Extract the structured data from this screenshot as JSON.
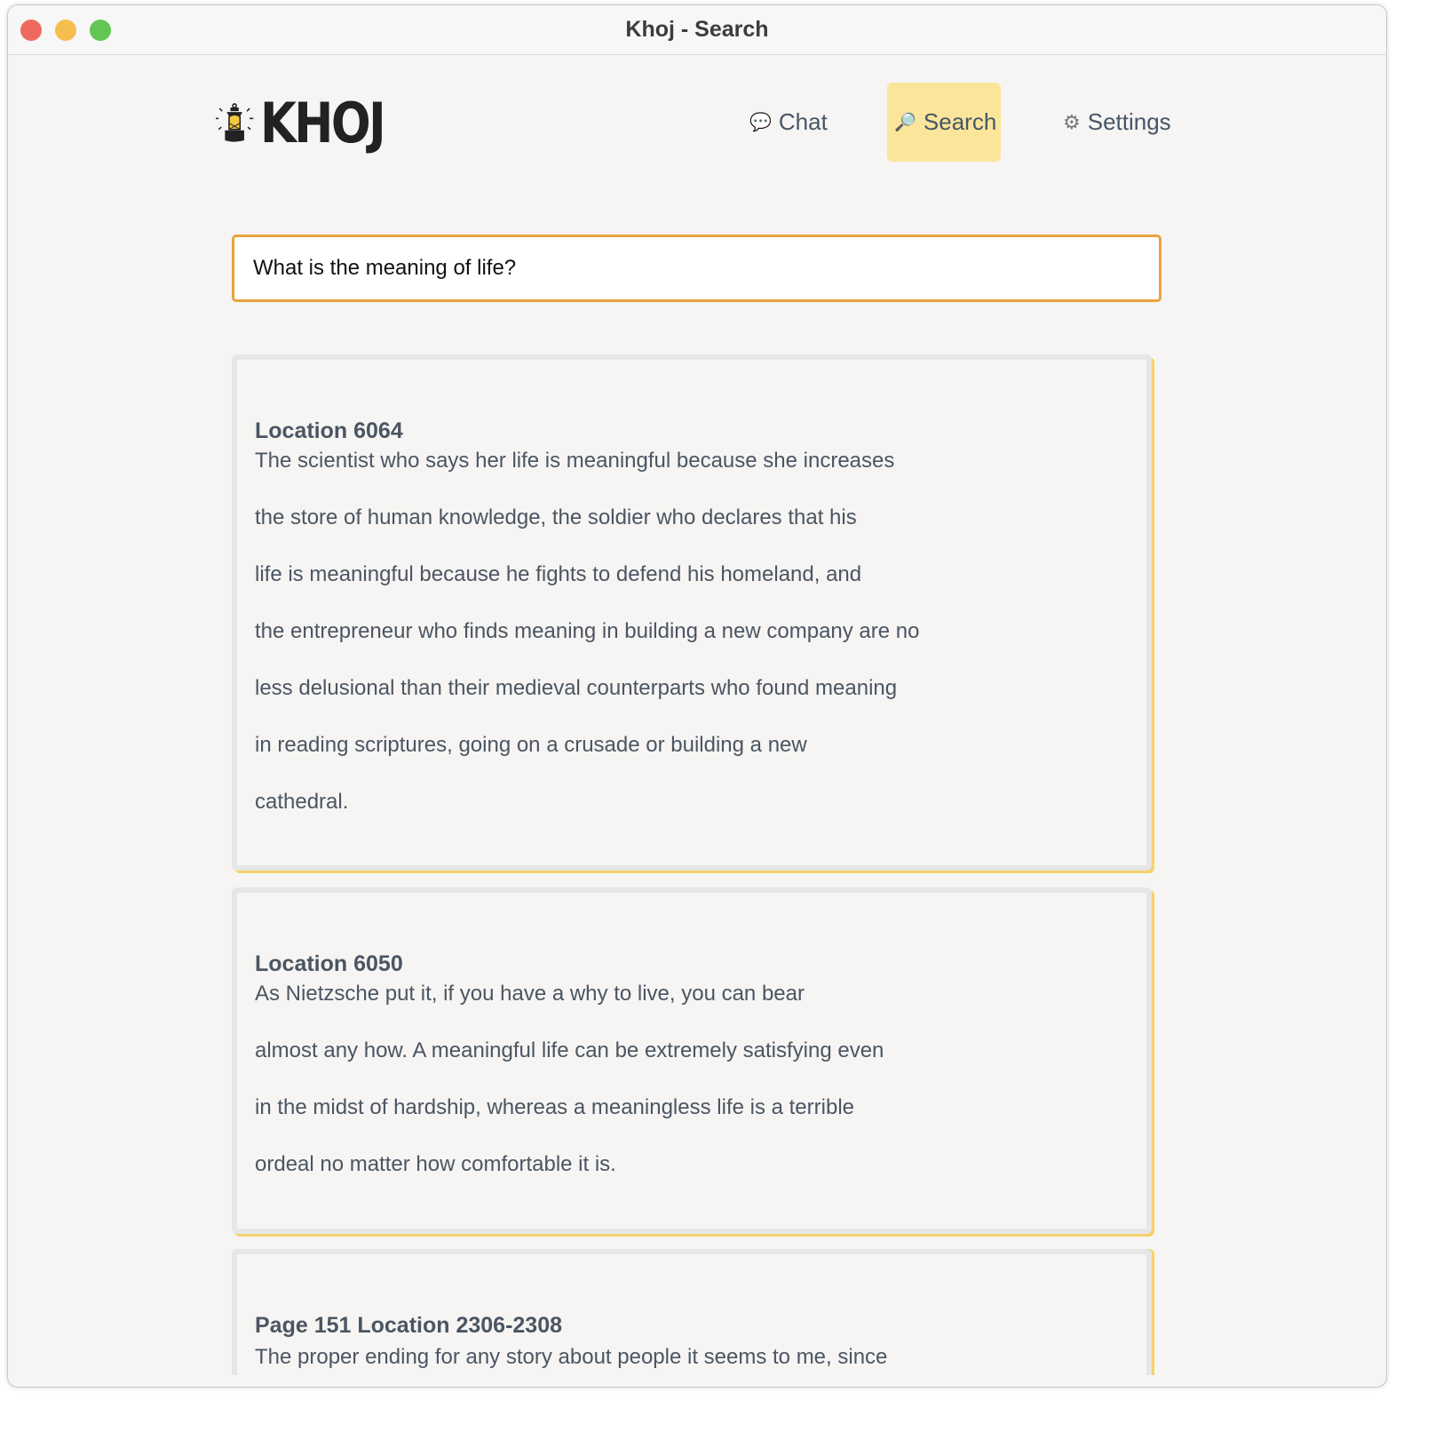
{
  "window": {
    "title": "Khoj - Search"
  },
  "logo": {
    "text": "KHOJ"
  },
  "nav": [
    {
      "label": "Chat",
      "icon": "speech-bubble-icon",
      "active": false
    },
    {
      "label": "Search",
      "icon": "magnifier-icon",
      "active": true
    },
    {
      "label": "Settings",
      "icon": "gear-icon",
      "active": false
    }
  ],
  "search": {
    "value": "What is the meaning of life?"
  },
  "results": [
    {
      "title": "Location 6064",
      "lines": [
        "The scientist who says her life is meaningful because she increases",
        "the store of human knowledge, the soldier who declares that his",
        "life is meaningful because he fights to defend his homeland, and",
        "the entrepreneur who finds meaning in building a new company are no",
        "less delusional than their medieval counterparts who found meaning",
        "in reading scriptures, going on a crusade or building a new",
        "cathedral."
      ]
    },
    {
      "title": "Location 6050",
      "lines": [
        "As Nietzsche put it, if you have a why to live, you can bear",
        "almost any how. A meaningful life can be extremely satisfying even",
        "in the midst of hardship, whereas a meaningless life is a terrible",
        "ordeal no matter how comfortable it is."
      ]
    },
    {
      "title": "Page 151 Location 2306-2308",
      "lines": [
        "The proper ending for any story about people it seems to me, since"
      ]
    }
  ],
  "colors": {
    "accent": "#e8a33d",
    "active_nav": "#fae59b",
    "card_shadow": "#f5d36a"
  }
}
